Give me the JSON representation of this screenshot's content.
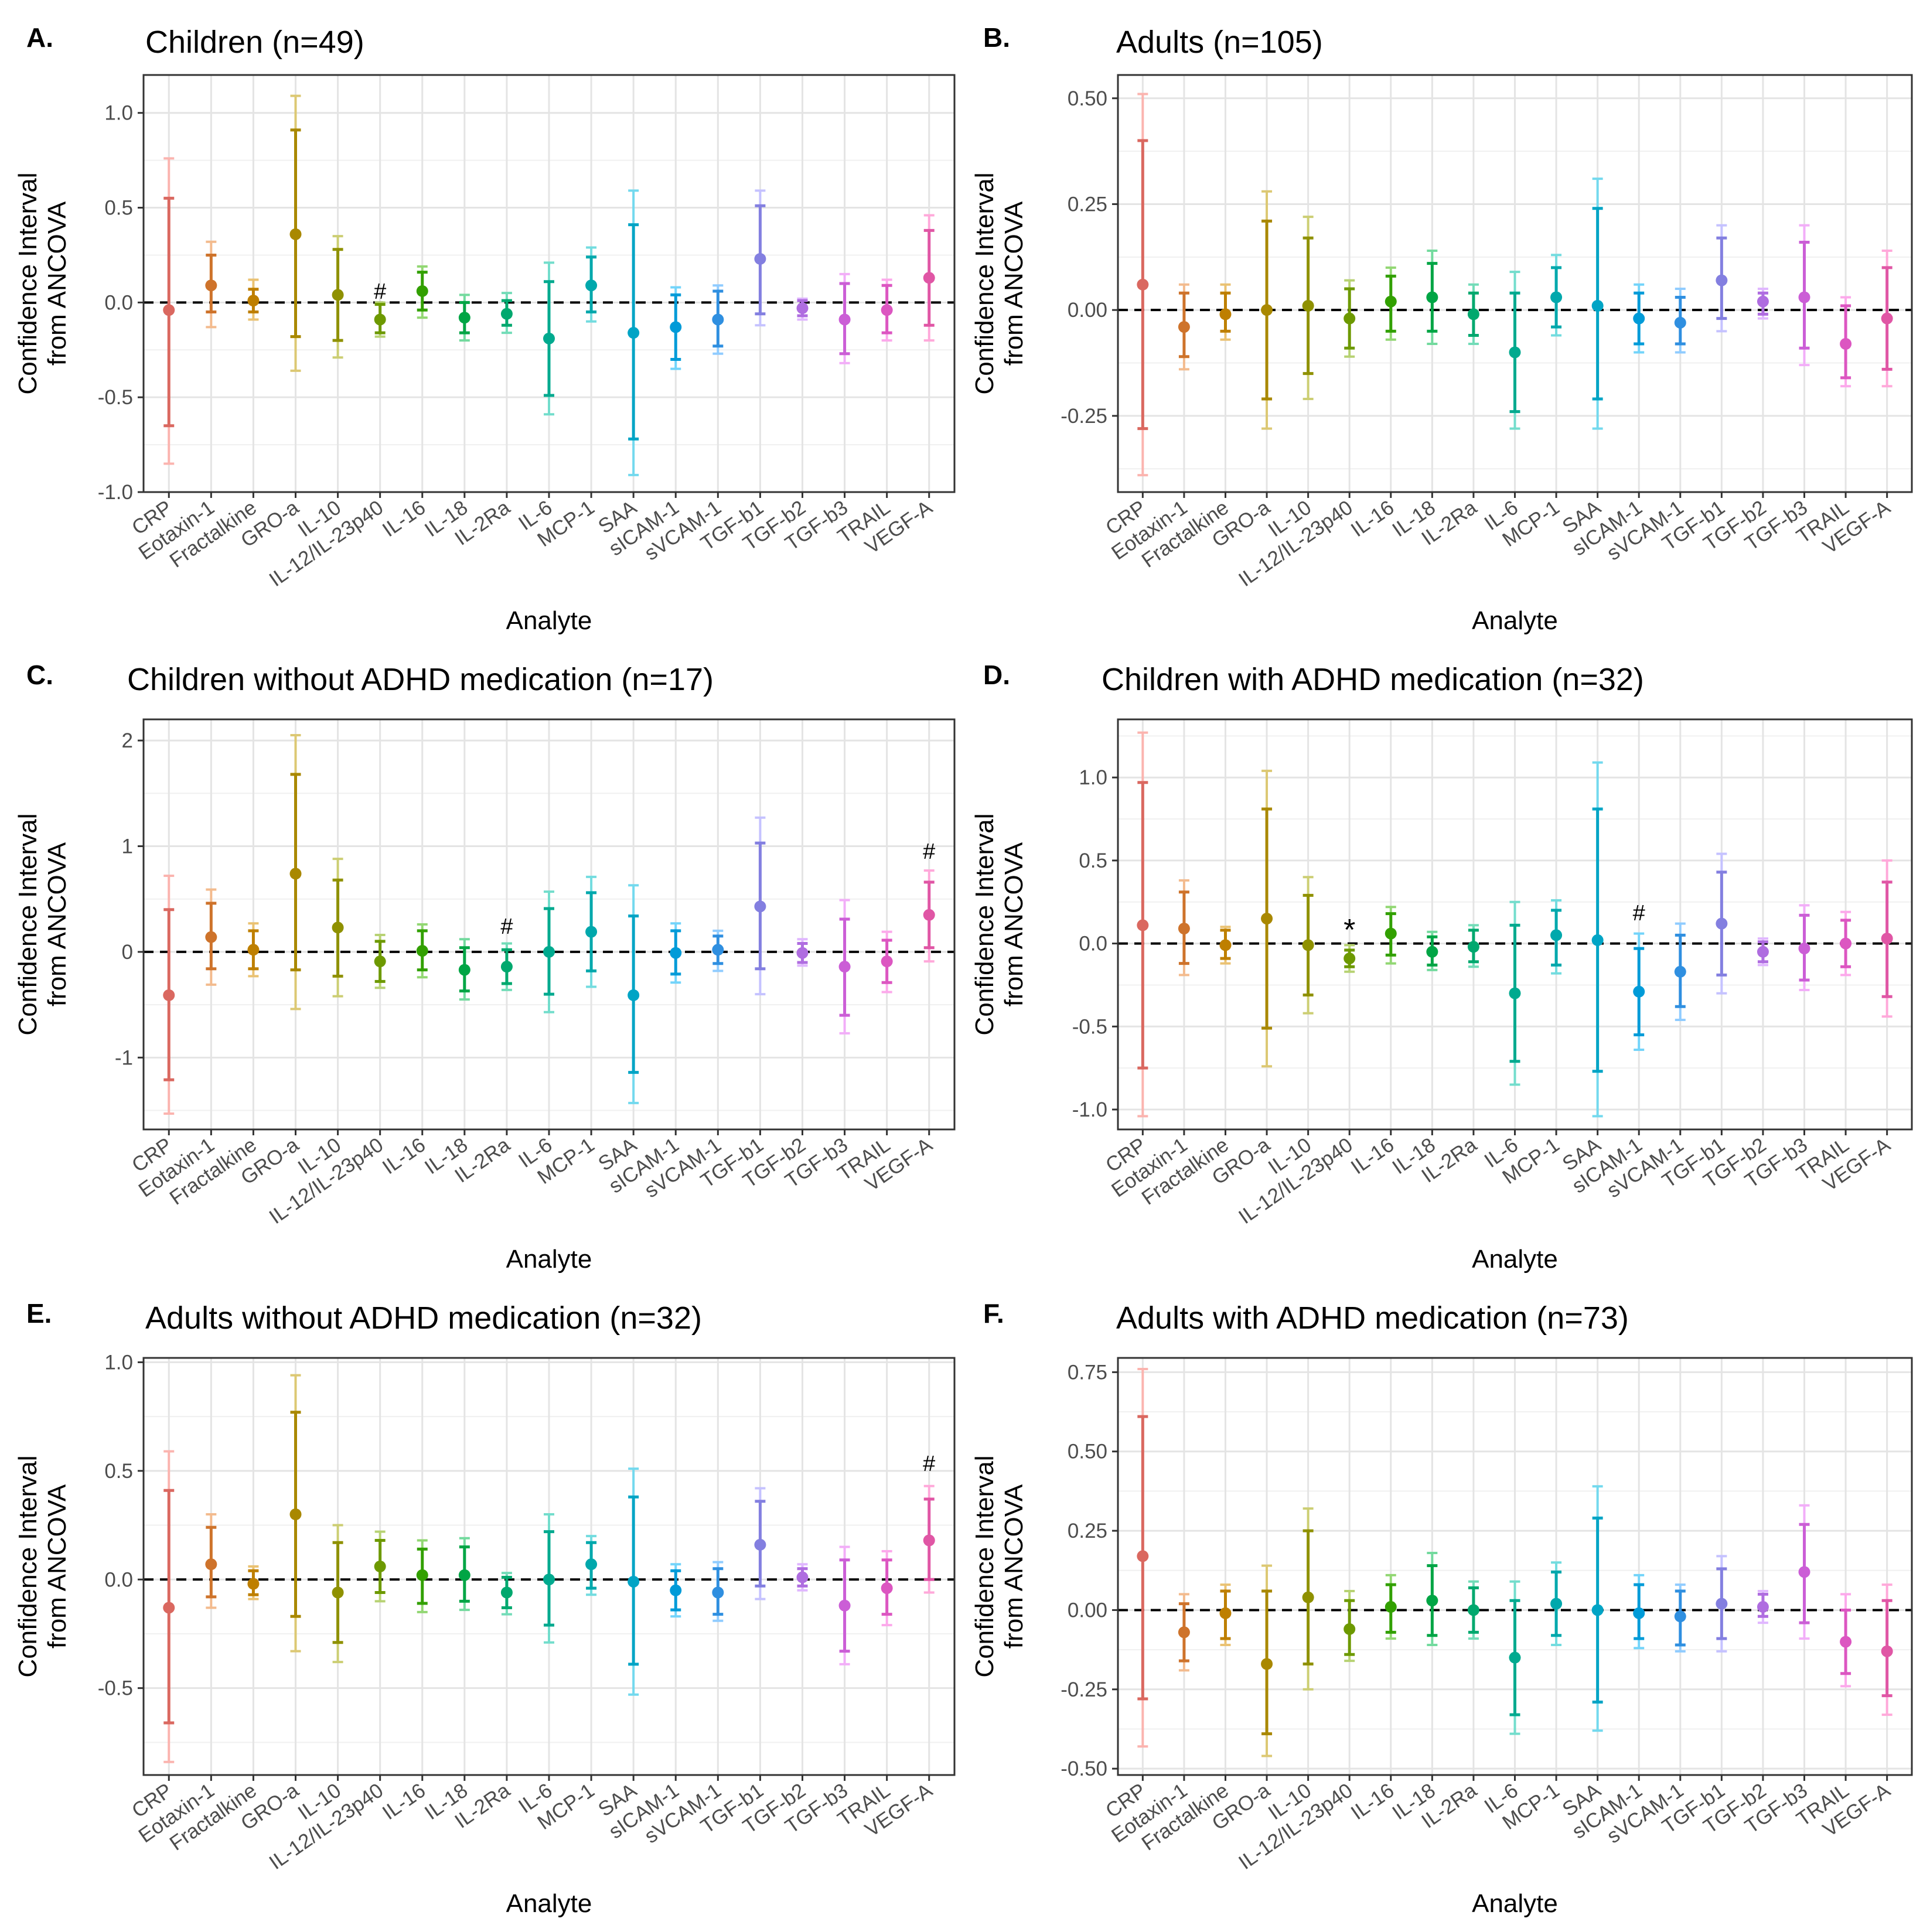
{
  "chart_data": [
    {
      "type": "scatter",
      "letter": "A.",
      "title": "Children (n=49)",
      "xlabel": "Analyte",
      "ylabel": [
        "Confidence Interval",
        "from ANCOVA"
      ],
      "ylim": [
        -1.0,
        1.2
      ],
      "yticks": [
        -1.0,
        -0.5,
        0.0,
        0.5,
        1.0
      ],
      "ytick_labels": [
        "-1.0",
        "-0.5",
        "0.0",
        "0.5",
        "1.0"
      ],
      "reference_line": 0,
      "categories": [
        "CRP",
        "Eotaxin-1",
        "Fractalkine",
        "GRO-a",
        "IL-10",
        "IL-12/IL-23p40",
        "IL-16",
        "IL-18",
        "IL-2Ra",
        "IL-6",
        "MCP-1",
        "SAA",
        "sICAM-1",
        "sVCAM-1",
        "TGF-b1",
        "TGF-b2",
        "TGF-b3",
        "TRAIL",
        "VEGF-A"
      ],
      "estimate": [
        -0.04,
        0.09,
        0.01,
        0.36,
        0.04,
        -0.09,
        0.06,
        -0.08,
        -0.06,
        -0.19,
        0.09,
        -0.16,
        -0.13,
        -0.09,
        0.23,
        -0.03,
        -0.09,
        -0.04,
        0.13
      ],
      "ci95_low": [
        -0.65,
        -0.05,
        -0.05,
        -0.18,
        -0.2,
        -0.16,
        -0.04,
        -0.16,
        -0.12,
        -0.49,
        -0.05,
        -0.72,
        -0.3,
        -0.23,
        -0.06,
        -0.07,
        -0.27,
        -0.16,
        -0.12
      ],
      "ci95_high": [
        0.55,
        0.25,
        0.07,
        0.91,
        0.28,
        -0.01,
        0.16,
        0.0,
        0.01,
        0.11,
        0.24,
        0.41,
        0.04,
        0.06,
        0.51,
        0.01,
        0.1,
        0.09,
        0.38
      ],
      "ci99_low": [
        -0.85,
        -0.13,
        -0.09,
        -0.36,
        -0.29,
        -0.18,
        -0.08,
        -0.2,
        -0.16,
        -0.59,
        -0.1,
        -0.91,
        -0.35,
        -0.27,
        -0.12,
        -0.09,
        -0.32,
        -0.2,
        -0.2
      ],
      "ci99_high": [
        0.76,
        0.32,
        0.12,
        1.09,
        0.35,
        0.0,
        0.19,
        0.04,
        0.05,
        0.21,
        0.29,
        0.59,
        0.08,
        0.09,
        0.59,
        0.02,
        0.15,
        0.12,
        0.46
      ],
      "annotations": [
        {
          "label": "#",
          "category": "IL-12/IL-23p40",
          "value": 0.02
        }
      ]
    },
    {
      "type": "scatter",
      "letter": "B.",
      "title": "Adults (n=105)",
      "xlabel": "Analyte",
      "ylabel": [
        "Confidence Interval",
        "from ANCOVA"
      ],
      "ylim": [
        -0.43,
        0.555
      ],
      "yticks": [
        -0.25,
        0.0,
        0.25,
        0.5
      ],
      "ytick_labels": [
        "-0.25",
        "0.00",
        "0.25",
        "0.50"
      ],
      "reference_line": 0,
      "categories": [
        "CRP",
        "Eotaxin-1",
        "Fractalkine",
        "GRO-a",
        "IL-10",
        "IL-12/IL-23p40",
        "IL-16",
        "IL-18",
        "IL-2Ra",
        "IL-6",
        "MCP-1",
        "SAA",
        "sICAM-1",
        "sVCAM-1",
        "TGF-b1",
        "TGF-b2",
        "TGF-b3",
        "TRAIL",
        "VEGF-A"
      ],
      "estimate": [
        0.06,
        -0.04,
        -0.01,
        0.0,
        0.01,
        -0.02,
        0.02,
        0.03,
        -0.01,
        -0.1,
        0.03,
        0.01,
        -0.02,
        -0.03,
        0.07,
        0.02,
        0.03,
        -0.08,
        -0.02
      ],
      "ci95_low": [
        -0.28,
        -0.11,
        -0.05,
        -0.21,
        -0.15,
        -0.09,
        -0.05,
        -0.05,
        -0.06,
        -0.24,
        -0.04,
        -0.21,
        -0.08,
        -0.08,
        -0.02,
        -0.01,
        -0.09,
        -0.16,
        -0.14
      ],
      "ci95_high": [
        0.4,
        0.04,
        0.04,
        0.21,
        0.17,
        0.05,
        0.08,
        0.11,
        0.04,
        0.04,
        0.1,
        0.24,
        0.04,
        0.03,
        0.17,
        0.04,
        0.16,
        0.01,
        0.1
      ],
      "ci99_low": [
        -0.39,
        -0.14,
        -0.07,
        -0.28,
        -0.21,
        -0.11,
        -0.07,
        -0.08,
        -0.08,
        -0.28,
        -0.06,
        -0.28,
        -0.1,
        -0.1,
        -0.05,
        -0.02,
        -0.13,
        -0.18,
        -0.18
      ],
      "ci99_high": [
        0.51,
        0.06,
        0.06,
        0.28,
        0.22,
        0.07,
        0.1,
        0.14,
        0.06,
        0.09,
        0.13,
        0.31,
        0.06,
        0.05,
        0.2,
        0.05,
        0.2,
        0.03,
        0.14
      ],
      "annotations": []
    },
    {
      "type": "scatter",
      "letter": "C.",
      "title": "Children without ADHD medication (n=17)",
      "xlabel": "Analyte",
      "ylabel": [
        "Confidence Interval",
        "from ANCOVA"
      ],
      "ylim": [
        -1.68,
        2.2
      ],
      "yticks": [
        -1,
        0,
        1,
        2
      ],
      "ytick_labels": [
        "-1",
        "0",
        "1",
        "2"
      ],
      "reference_line": 0,
      "categories": [
        "CRP",
        "Eotaxin-1",
        "Fractalkine",
        "GRO-a",
        "IL-10",
        "IL-12/IL-23p40",
        "IL-16",
        "IL-18",
        "IL-2Ra",
        "IL-6",
        "MCP-1",
        "SAA",
        "sICAM-1",
        "sVCAM-1",
        "TGF-b1",
        "TGF-b2",
        "TGF-b3",
        "TRAIL",
        "VEGF-A"
      ],
      "estimate": [
        -0.41,
        0.14,
        0.02,
        0.74,
        0.23,
        -0.09,
        0.01,
        -0.17,
        -0.14,
        0.0,
        0.19,
        -0.41,
        -0.01,
        0.02,
        0.43,
        -0.01,
        -0.14,
        -0.09,
        0.35
      ],
      "ci95_low": [
        -1.21,
        -0.16,
        -0.16,
        -0.17,
        -0.23,
        -0.28,
        -0.17,
        -0.37,
        -0.3,
        -0.4,
        -0.18,
        -1.14,
        -0.21,
        -0.11,
        -0.16,
        -0.1,
        -0.6,
        -0.29,
        0.04
      ],
      "ci95_high": [
        0.4,
        0.46,
        0.2,
        1.68,
        0.68,
        0.1,
        0.2,
        0.04,
        0.02,
        0.41,
        0.56,
        0.34,
        0.2,
        0.15,
        1.03,
        0.08,
        0.31,
        0.11,
        0.66
      ],
      "ci99_low": [
        -1.53,
        -0.31,
        -0.23,
        -0.54,
        -0.42,
        -0.34,
        -0.24,
        -0.45,
        -0.36,
        -0.57,
        -0.33,
        -1.43,
        -0.29,
        -0.18,
        -0.4,
        -0.13,
        -0.77,
        -0.38,
        -0.09
      ],
      "ci99_high": [
        0.72,
        0.59,
        0.27,
        2.05,
        0.88,
        0.16,
        0.26,
        0.12,
        0.08,
        0.57,
        0.71,
        0.63,
        0.27,
        0.2,
        1.27,
        0.12,
        0.49,
        0.19,
        0.77
      ],
      "annotations": [
        {
          "label": "#",
          "category": "IL-2Ra",
          "value": 0.17
        },
        {
          "label": "#",
          "category": "VEGF-A",
          "value": 0.88
        }
      ]
    },
    {
      "type": "scatter",
      "letter": "D.",
      "title": "Children with ADHD medication (n=32)",
      "xlabel": "Analyte",
      "ylabel": [
        "Confidence Interval",
        "from ANCOVA"
      ],
      "ylim": [
        -1.12,
        1.35
      ],
      "yticks": [
        -1.0,
        -0.5,
        0.0,
        0.5,
        1.0
      ],
      "ytick_labels": [
        "-1.0",
        "-0.5",
        "0.0",
        "0.5",
        "1.0"
      ],
      "reference_line": 0,
      "categories": [
        "CRP",
        "Eotaxin-1",
        "Fractalkine",
        "GRO-a",
        "IL-10",
        "IL-12/IL-23p40",
        "IL-16",
        "IL-18",
        "IL-2Ra",
        "IL-6",
        "MCP-1",
        "SAA",
        "sICAM-1",
        "sVCAM-1",
        "TGF-b1",
        "TGF-b2",
        "TGF-b3",
        "TRAIL",
        "VEGF-A"
      ],
      "estimate": [
        0.11,
        0.09,
        -0.01,
        0.15,
        -0.01,
        -0.09,
        0.06,
        -0.05,
        -0.02,
        -0.3,
        0.05,
        0.02,
        -0.29,
        -0.17,
        0.12,
        -0.05,
        -0.03,
        0.0,
        0.03
      ],
      "ci95_low": [
        -0.75,
        -0.12,
        -0.09,
        -0.51,
        -0.31,
        -0.14,
        -0.07,
        -0.13,
        -0.11,
        -0.71,
        -0.13,
        -0.77,
        -0.55,
        -0.38,
        -0.19,
        -0.11,
        -0.22,
        -0.14,
        -0.32
      ],
      "ci95_high": [
        0.97,
        0.31,
        0.08,
        0.81,
        0.29,
        -0.04,
        0.18,
        0.04,
        0.08,
        0.11,
        0.2,
        0.81,
        -0.03,
        0.05,
        0.43,
        0.01,
        0.17,
        0.14,
        0.37
      ],
      "ci99_low": [
        -1.04,
        -0.19,
        -0.12,
        -0.74,
        -0.42,
        -0.17,
        -0.12,
        -0.16,
        -0.14,
        -0.85,
        -0.18,
        -1.04,
        -0.64,
        -0.46,
        -0.3,
        -0.13,
        -0.28,
        -0.19,
        -0.44
      ],
      "ci99_high": [
        1.27,
        0.38,
        0.1,
        1.04,
        0.4,
        -0.01,
        0.22,
        0.07,
        0.11,
        0.25,
        0.26,
        1.09,
        0.06,
        0.12,
        0.54,
        0.03,
        0.23,
        0.19,
        0.5
      ],
      "annotations": [
        {
          "label": "*",
          "category": "IL-12/IL-23p40",
          "value": 0.02
        },
        {
          "label": "#",
          "category": "sICAM-1",
          "value": 0.14
        }
      ]
    },
    {
      "type": "scatter",
      "letter": "E.",
      "title": "Adults without ADHD medication (n=32)",
      "xlabel": "Analyte",
      "ylabel": [
        "Confidence Interval",
        "from ANCOVA"
      ],
      "ylim": [
        -0.9,
        1.02
      ],
      "yticks": [
        -0.5,
        0.0,
        0.5,
        1.0
      ],
      "ytick_labels": [
        "-0.5",
        "0.0",
        "0.5",
        "1.0"
      ],
      "reference_line": 0,
      "categories": [
        "CRP",
        "Eotaxin-1",
        "Fractalkine",
        "GRO-a",
        "IL-10",
        "IL-12/IL-23p40",
        "IL-16",
        "IL-18",
        "IL-2Ra",
        "IL-6",
        "MCP-1",
        "SAA",
        "sICAM-1",
        "sVCAM-1",
        "TGF-b1",
        "TGF-b2",
        "TGF-b3",
        "TRAIL",
        "VEGF-A"
      ],
      "estimate": [
        -0.13,
        0.07,
        -0.02,
        0.3,
        -0.06,
        0.06,
        0.02,
        0.02,
        -0.06,
        0.0,
        0.07,
        -0.01,
        -0.05,
        -0.06,
        0.16,
        0.01,
        -0.12,
        -0.04,
        0.18
      ],
      "ci95_low": [
        -0.66,
        -0.08,
        -0.07,
        -0.17,
        -0.29,
        -0.06,
        -0.11,
        -0.1,
        -0.13,
        -0.21,
        -0.04,
        -0.39,
        -0.14,
        -0.16,
        -0.03,
        -0.03,
        -0.33,
        -0.16,
        0.0
      ],
      "ci95_high": [
        0.41,
        0.24,
        0.04,
        0.77,
        0.17,
        0.18,
        0.14,
        0.15,
        0.01,
        0.22,
        0.17,
        0.38,
        0.04,
        0.05,
        0.36,
        0.05,
        0.09,
        0.09,
        0.37
      ],
      "ci99_low": [
        -0.84,
        -0.13,
        -0.09,
        -0.33,
        -0.38,
        -0.1,
        -0.15,
        -0.14,
        -0.16,
        -0.29,
        -0.07,
        -0.53,
        -0.17,
        -0.19,
        -0.09,
        -0.05,
        -0.39,
        -0.21,
        -0.06
      ],
      "ci99_high": [
        0.59,
        0.3,
        0.06,
        0.94,
        0.25,
        0.22,
        0.18,
        0.19,
        0.03,
        0.3,
        0.2,
        0.51,
        0.07,
        0.08,
        0.42,
        0.07,
        0.15,
        0.13,
        0.43
      ],
      "annotations": [
        {
          "label": "#",
          "category": "VEGF-A",
          "value": 0.5
        }
      ]
    },
    {
      "type": "scatter",
      "letter": "F.",
      "title": "Adults with ADHD medication (n=73)",
      "xlabel": "Analyte",
      "ylabel": [
        "Confidence Interval",
        "from ANCOVA"
      ],
      "ylim": [
        -0.52,
        0.795
      ],
      "yticks": [
        -0.5,
        -0.25,
        0.0,
        0.25,
        0.5,
        0.75
      ],
      "ytick_labels": [
        "-0.50",
        "-0.25",
        "0.00",
        "0.25",
        "0.50",
        "0.75"
      ],
      "reference_line": 0,
      "categories": [
        "CRP",
        "Eotaxin-1",
        "Fractalkine",
        "GRO-a",
        "IL-10",
        "IL-12/IL-23p40",
        "IL-16",
        "IL-18",
        "IL-2Ra",
        "IL-6",
        "MCP-1",
        "SAA",
        "sICAM-1",
        "sVCAM-1",
        "TGF-b1",
        "TGF-b2",
        "TGF-b3",
        "TRAIL",
        "VEGF-A"
      ],
      "estimate": [
        0.17,
        -0.07,
        -0.01,
        -0.17,
        0.04,
        -0.06,
        0.01,
        0.03,
        0.0,
        -0.15,
        0.02,
        0.0,
        -0.01,
        -0.02,
        0.02,
        0.01,
        0.12,
        -0.1,
        -0.13
      ],
      "ci95_low": [
        -0.28,
        -0.16,
        -0.09,
        -0.39,
        -0.17,
        -0.14,
        -0.07,
        -0.08,
        -0.07,
        -0.33,
        -0.08,
        -0.29,
        -0.09,
        -0.11,
        -0.09,
        -0.02,
        -0.04,
        -0.2,
        -0.27
      ],
      "ci95_high": [
        0.61,
        0.02,
        0.06,
        0.06,
        0.25,
        0.03,
        0.08,
        0.14,
        0.07,
        0.03,
        0.12,
        0.29,
        0.08,
        0.06,
        0.13,
        0.05,
        0.27,
        0.0,
        0.03
      ],
      "ci99_low": [
        -0.43,
        -0.19,
        -0.11,
        -0.46,
        -0.25,
        -0.16,
        -0.09,
        -0.11,
        -0.09,
        -0.39,
        -0.11,
        -0.38,
        -0.12,
        -0.13,
        -0.13,
        -0.04,
        -0.09,
        -0.24,
        -0.33
      ],
      "ci99_high": [
        0.76,
        0.05,
        0.08,
        0.14,
        0.32,
        0.06,
        0.11,
        0.18,
        0.09,
        0.09,
        0.15,
        0.39,
        0.11,
        0.08,
        0.17,
        0.06,
        0.33,
        0.05,
        0.08
      ],
      "annotations": []
    }
  ],
  "colors": {
    "CRP": "#F8766D",
    "Eotaxin-1": "#EA8331",
    "Fractalkine": "#D89000",
    "GRO-a": "#C09B00",
    "IL-10": "#A3A500",
    "IL-12/IL-23p40": "#7CAE00",
    "IL-16": "#39B600",
    "IL-18": "#00BB4E",
    "IL-2Ra": "#00BF7D",
    "IL-6": "#00C1A3",
    "MCP-1": "#00BFC4",
    "SAA": "#00BAE0",
    "sICAM-1": "#00B0F6",
    "sVCAM-1": "#35A2FF",
    "TGF-b1": "#9590FF",
    "TGF-b2": "#C77CFF",
    "TGF-b3": "#E76BF3",
    "TRAIL": "#FA62DB",
    "VEGF-A": "#FF62BC"
  }
}
